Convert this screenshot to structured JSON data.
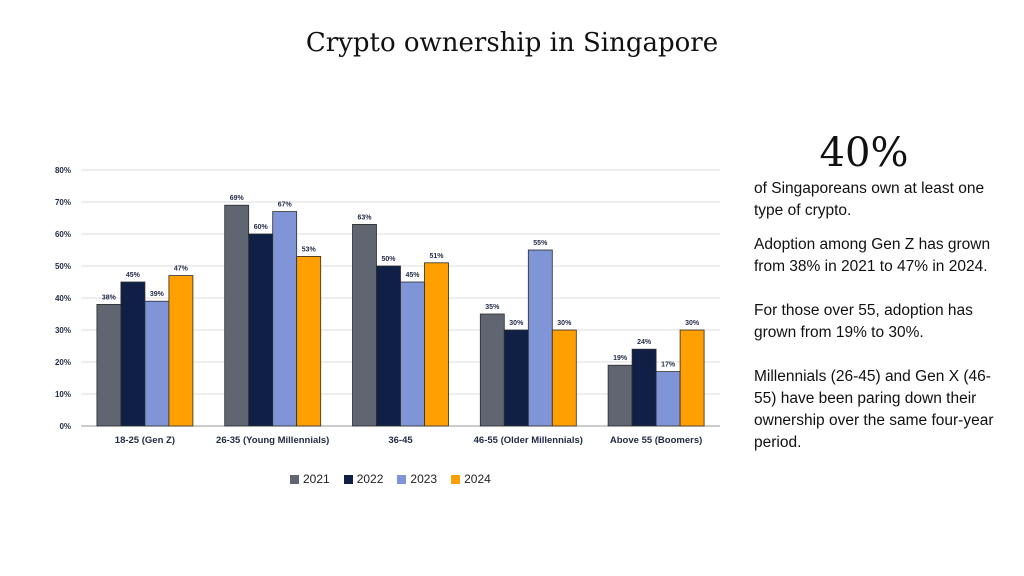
{
  "page": {
    "title": "Crypto ownership in Singapore"
  },
  "colors": {
    "2021": "#5f6672",
    "2022": "#0f1f45",
    "2023": "#7f95d8",
    "2024": "#ff9f00",
    "grid": "#dddddd"
  },
  "sidebar": {
    "stat": "40%",
    "stat_caption": "of Singaporeans own at least one type of crypto.",
    "paragraphs": [
      "Adoption among Gen Z has grown from 38% in 2021 to 47% in 2024.",
      "For those over 55, adoption has grown from 19% to 30%.",
      "Millennials (26-45) and Gen X (46-55) have been paring down their ownership over the same four-year period."
    ]
  },
  "chart_data": {
    "type": "bar",
    "categories": [
      "18-25 (Gen Z)",
      "26-35 (Young Millennials)",
      "36-45",
      "46-55 (Older Millennials)",
      "Above 55 (Boomers)"
    ],
    "series": [
      {
        "name": "2021",
        "values": [
          38,
          69,
          63,
          35,
          19
        ]
      },
      {
        "name": "2022",
        "values": [
          45,
          60,
          50,
          30,
          24
        ]
      },
      {
        "name": "2023",
        "values": [
          39,
          67,
          45,
          55,
          17
        ]
      },
      {
        "name": "2024",
        "values": [
          47,
          53,
          51,
          30,
          30
        ]
      }
    ],
    "ylim": [
      0,
      80
    ],
    "yticks": [
      "0%",
      "10%",
      "20%",
      "30%",
      "40%",
      "50%",
      "60%",
      "70%",
      "80%"
    ],
    "grid": true,
    "legend": "bottom",
    "data_label_suffix": "%"
  }
}
